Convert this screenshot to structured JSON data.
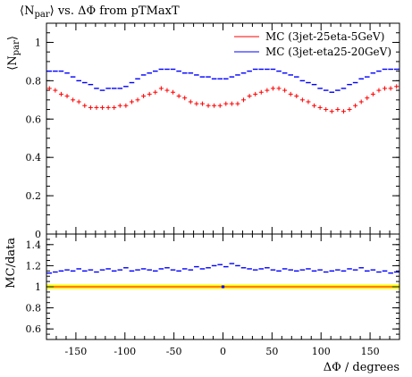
{
  "chart_data": [
    {
      "type": "scatter",
      "title": "⟨N_par⟩ vs. ΔΦ from pTMaxT",
      "xlabel": "",
      "ylabel": "⟨N_par⟩",
      "xlim": [
        -180,
        180
      ],
      "ylim": [
        0,
        1.1
      ],
      "y_ticks": [
        "0",
        "0.2",
        "0.4",
        "0.6",
        "0.8",
        "1"
      ],
      "legend_position": "top-right",
      "series": [
        {
          "name": "MC (3jet-25eta-5GeV)",
          "color": "#ff0000",
          "marker": "plus",
          "x": [
            -177,
            -171,
            -165,
            -159,
            -153,
            -147,
            -141,
            -135,
            -129,
            -123,
            -117,
            -111,
            -105,
            -99,
            -93,
            -87,
            -81,
            -75,
            -69,
            -63,
            -57,
            -51,
            -45,
            -39,
            -33,
            -27,
            -21,
            -15,
            -9,
            -3,
            3,
            9,
            15,
            21,
            27,
            33,
            39,
            45,
            51,
            57,
            63,
            69,
            75,
            81,
            87,
            93,
            99,
            105,
            111,
            117,
            123,
            129,
            135,
            141,
            147,
            153,
            159,
            165,
            171,
            177
          ],
          "y": [
            0.76,
            0.75,
            0.73,
            0.72,
            0.7,
            0.69,
            0.67,
            0.66,
            0.66,
            0.66,
            0.66,
            0.66,
            0.67,
            0.67,
            0.69,
            0.7,
            0.72,
            0.73,
            0.74,
            0.76,
            0.75,
            0.74,
            0.72,
            0.71,
            0.69,
            0.68,
            0.68,
            0.67,
            0.67,
            0.67,
            0.68,
            0.68,
            0.68,
            0.7,
            0.72,
            0.73,
            0.74,
            0.75,
            0.76,
            0.76,
            0.75,
            0.73,
            0.72,
            0.7,
            0.69,
            0.67,
            0.66,
            0.65,
            0.64,
            0.65,
            0.64,
            0.65,
            0.67,
            0.69,
            0.71,
            0.73,
            0.75,
            0.76,
            0.76,
            0.77
          ]
        },
        {
          "name": "MC (3jet-eta25-20GeV)",
          "color": "#0000ff",
          "marker": "dash",
          "x": [
            -177,
            -171,
            -165,
            -159,
            -153,
            -147,
            -141,
            -135,
            -129,
            -123,
            -117,
            -111,
            -105,
            -99,
            -93,
            -87,
            -81,
            -75,
            -69,
            -63,
            -57,
            -51,
            -45,
            -39,
            -33,
            -27,
            -21,
            -15,
            -9,
            -3,
            3,
            9,
            15,
            21,
            27,
            33,
            39,
            45,
            51,
            57,
            63,
            69,
            75,
            81,
            87,
            93,
            99,
            105,
            111,
            117,
            123,
            129,
            135,
            141,
            147,
            153,
            159,
            165,
            171,
            177
          ],
          "y": [
            0.85,
            0.85,
            0.85,
            0.84,
            0.82,
            0.8,
            0.79,
            0.78,
            0.76,
            0.75,
            0.76,
            0.76,
            0.76,
            0.77,
            0.79,
            0.81,
            0.83,
            0.84,
            0.85,
            0.86,
            0.86,
            0.86,
            0.85,
            0.84,
            0.84,
            0.83,
            0.82,
            0.82,
            0.81,
            0.81,
            0.81,
            0.82,
            0.83,
            0.84,
            0.85,
            0.86,
            0.86,
            0.86,
            0.86,
            0.85,
            0.84,
            0.83,
            0.82,
            0.8,
            0.79,
            0.78,
            0.76,
            0.75,
            0.74,
            0.75,
            0.76,
            0.78,
            0.79,
            0.81,
            0.82,
            0.84,
            0.85,
            0.86,
            0.86,
            0.86
          ]
        }
      ]
    },
    {
      "type": "scatter",
      "title": "",
      "xlabel": "ΔΦ / degrees",
      "ylabel": "MC/data",
      "xlim": [
        -180,
        180
      ],
      "ylim": [
        0.5,
        1.5
      ],
      "x_ticks": [
        "-150",
        "-100",
        "-50",
        "0",
        "50",
        "100",
        "150"
      ],
      "y_ticks": [
        "0.6",
        "0.8",
        "1",
        "1.2",
        "1.4"
      ],
      "reference_band": {
        "value": 1.0,
        "color": "#ffff00",
        "line_color": "#ff0000"
      },
      "series": [
        {
          "name": "",
          "color": "#0000ff",
          "marker": "dash",
          "x": [
            -177,
            -171,
            -165,
            -159,
            -153,
            -147,
            -141,
            -135,
            -129,
            -123,
            -117,
            -111,
            -105,
            -99,
            -93,
            -87,
            -81,
            -75,
            -69,
            -63,
            -57,
            -51,
            -45,
            -39,
            -33,
            -27,
            -21,
            -15,
            -9,
            -3,
            3,
            9,
            15,
            21,
            27,
            33,
            39,
            45,
            51,
            57,
            63,
            69,
            75,
            81,
            87,
            93,
            99,
            105,
            111,
            117,
            123,
            129,
            135,
            141,
            147,
            153,
            159,
            165,
            171,
            177
          ],
          "y": [
            1.13,
            1.14,
            1.15,
            1.16,
            1.15,
            1.17,
            1.15,
            1.16,
            1.14,
            1.16,
            1.17,
            1.15,
            1.16,
            1.18,
            1.15,
            1.16,
            1.17,
            1.16,
            1.15,
            1.17,
            1.18,
            1.16,
            1.15,
            1.17,
            1.16,
            1.19,
            1.17,
            1.18,
            1.2,
            1.21,
            1.19,
            1.22,
            1.2,
            1.18,
            1.17,
            1.16,
            1.17,
            1.18,
            1.16,
            1.15,
            1.17,
            1.16,
            1.15,
            1.16,
            1.17,
            1.15,
            1.16,
            1.14,
            1.15,
            1.16,
            1.15,
            1.17,
            1.16,
            1.18,
            1.15,
            1.16,
            1.14,
            1.15,
            1.13,
            1.14
          ]
        }
      ]
    }
  ]
}
